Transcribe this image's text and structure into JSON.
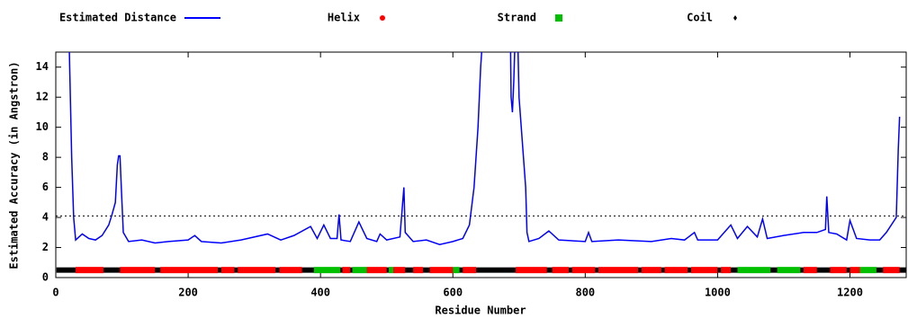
{
  "chart_data": {
    "type": "line",
    "x_label": "Residue Number",
    "y_label": "Estimated Accuracy (in Angstron)",
    "xlim": [
      0,
      1285
    ],
    "ylim": [
      0,
      15
    ],
    "xticks": [
      0,
      200,
      400,
      600,
      800,
      1000,
      1200
    ],
    "yticks": [
      0,
      2,
      4,
      6,
      8,
      10,
      12,
      14
    ],
    "reference_line": 4.1,
    "series": [
      {
        "name": "Estimated Distance",
        "color": "#0000ff",
        "x": [
          20,
          22,
          24,
          27,
          30,
          35,
          40,
          50,
          60,
          70,
          80,
          85,
          90,
          93,
          95,
          97,
          99,
          102,
          110,
          130,
          150,
          170,
          200,
          210,
          220,
          250,
          280,
          320,
          340,
          360,
          385,
          395,
          405,
          415,
          425,
          428,
          431,
          445,
          458,
          470,
          485,
          490,
          500,
          520,
          526,
          528,
          540,
          560,
          580,
          600,
          615,
          625,
          632,
          638,
          642,
          645,
          687,
          688,
          690,
          692,
          694,
          698,
          700,
          705,
          710,
          712,
          715,
          730,
          745,
          760,
          800,
          805,
          810,
          850,
          900,
          930,
          950,
          965,
          970,
          1000,
          1020,
          1030,
          1045,
          1060,
          1068,
          1075,
          1100,
          1130,
          1150,
          1163,
          1165,
          1168,
          1180,
          1195,
          1200,
          1210,
          1230,
          1245,
          1255,
          1270,
          1273,
          1275
        ],
        "values": [
          16,
          12,
          8,
          4,
          2.5,
          2.7,
          2.9,
          2.6,
          2.5,
          2.8,
          3.5,
          4.2,
          5,
          7.5,
          8.1,
          8.1,
          6,
          3,
          2.4,
          2.5,
          2.3,
          2.4,
          2.5,
          2.8,
          2.4,
          2.3,
          2.5,
          2.9,
          2.5,
          2.8,
          3.4,
          2.6,
          3.5,
          2.6,
          2.6,
          4.2,
          2.5,
          2.4,
          3.7,
          2.6,
          2.4,
          2.9,
          2.5,
          2.7,
          6,
          3,
          2.4,
          2.5,
          2.2,
          2.4,
          2.6,
          3.5,
          6,
          10,
          14,
          16,
          16,
          12,
          11,
          13,
          16,
          16,
          12,
          9,
          6,
          3,
          2.4,
          2.6,
          3.1,
          2.5,
          2.4,
          3,
          2.4,
          2.5,
          2.4,
          2.6,
          2.5,
          3,
          2.5,
          2.5,
          3.5,
          2.6,
          3.4,
          2.7,
          3.9,
          2.6,
          2.8,
          3,
          3,
          3.2,
          5.4,
          3,
          2.9,
          2.5,
          3.8,
          2.6,
          2.5,
          2.5,
          3,
          4,
          8.5,
          10.7
        ]
      }
    ],
    "secondary_structure": {
      "y": 0.5,
      "series": [
        {
          "name": "Coil",
          "color": "#000000",
          "marker": "diamond",
          "ranges": [
            [
              1,
              1285
            ]
          ]
        },
        {
          "name": "Helix",
          "color": "#ff0000",
          "marker": "circle",
          "ranges": [
            [
              30,
              72
            ],
            [
              97,
              150
            ],
            [
              158,
              245
            ],
            [
              250,
              270
            ],
            [
              275,
              332
            ],
            [
              338,
              372
            ],
            [
              433,
              445
            ],
            [
              470,
              500
            ],
            [
              510,
              528
            ],
            [
              540,
              555
            ],
            [
              565,
              600
            ],
            [
              615,
              635
            ],
            [
              695,
              742
            ],
            [
              750,
              775
            ],
            [
              780,
              815
            ],
            [
              820,
              880
            ],
            [
              885,
              915
            ],
            [
              920,
              955
            ],
            [
              960,
              1000
            ],
            [
              1005,
              1020
            ],
            [
              1130,
              1150
            ],
            [
              1170,
              1195
            ],
            [
              1200,
              1215
            ],
            [
              1250,
              1275
            ]
          ]
        },
        {
          "name": "Strand",
          "color": "#00c000",
          "marker": "square",
          "ranges": [
            [
              390,
              430
            ],
            [
              448,
              470
            ],
            [
              503,
              510
            ],
            [
              600,
              610
            ],
            [
              1030,
              1080
            ],
            [
              1090,
              1125
            ],
            [
              1215,
              1240
            ]
          ]
        }
      ]
    }
  }
}
